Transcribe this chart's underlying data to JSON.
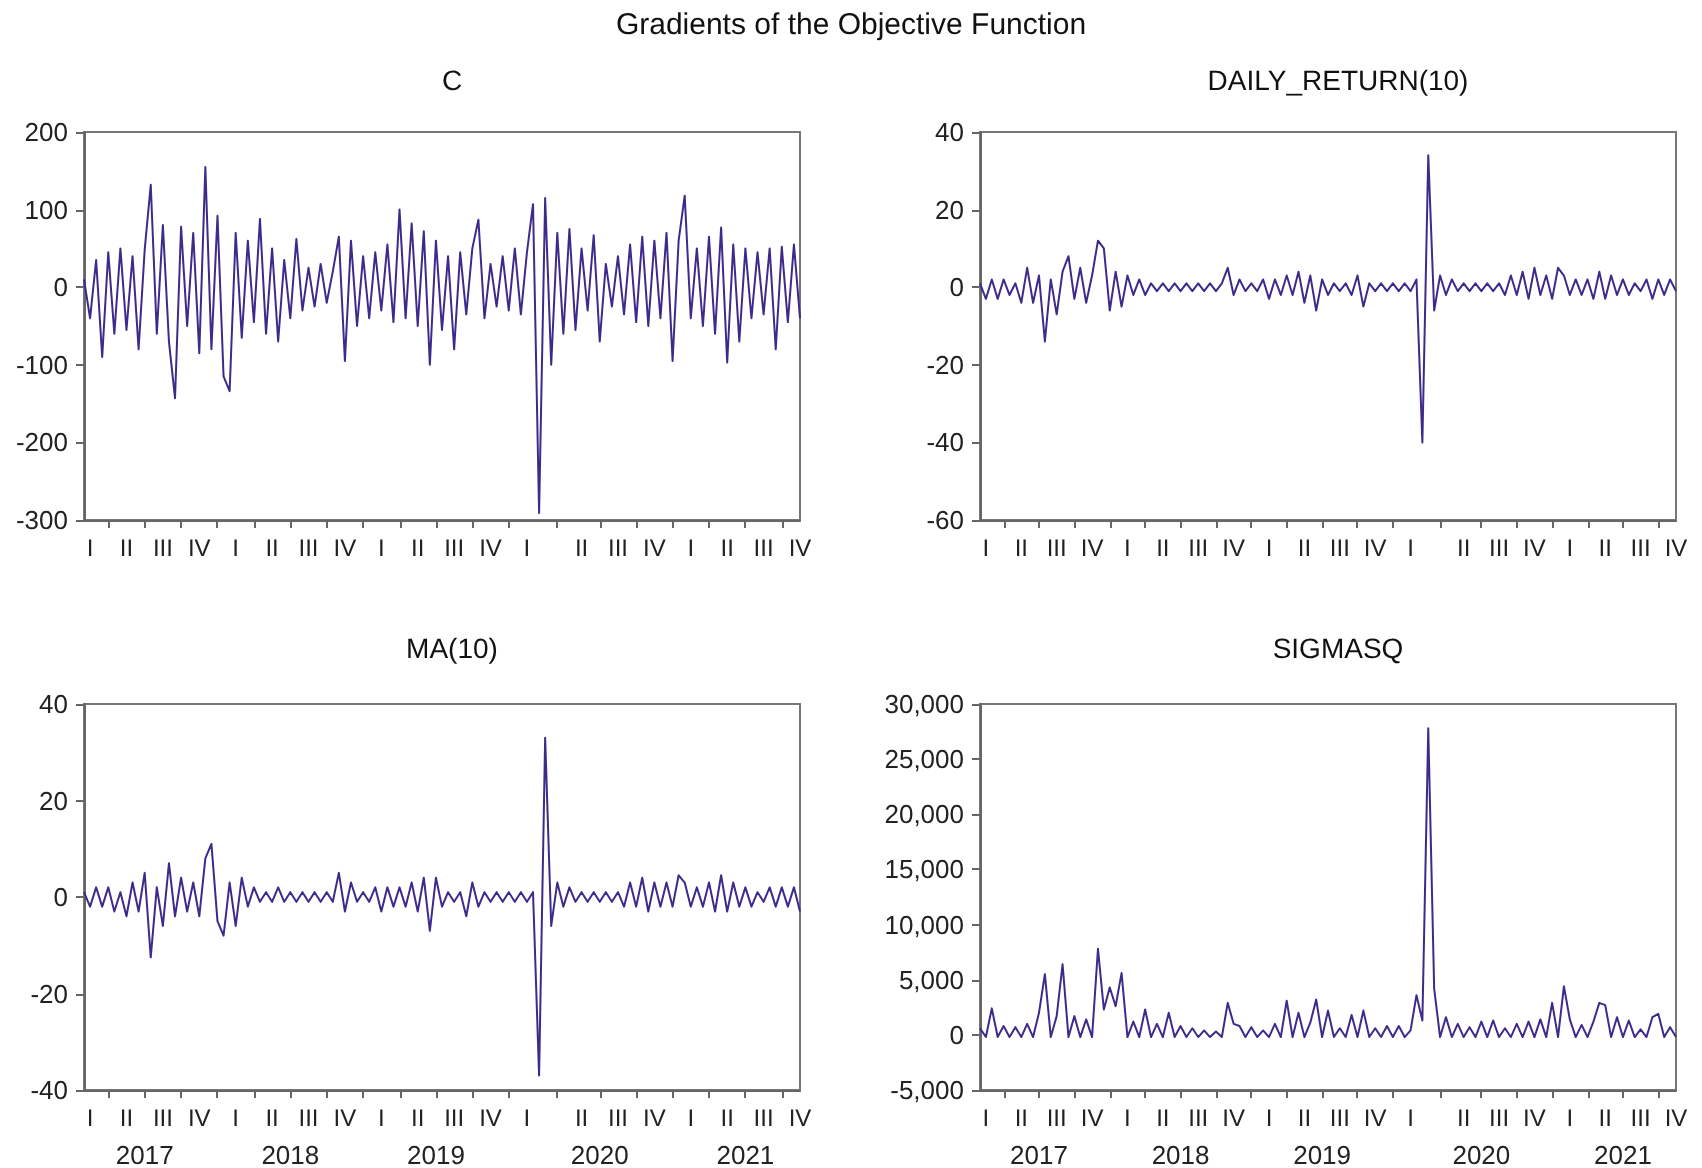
{
  "chart_data": [
    {
      "type": "line",
      "title": "C",
      "annotations": [
        "Gradients of the Objective Function"
      ],
      "color": "#3f2a8c",
      "categories": [
        null,
        "I",
        null,
        null,
        null,
        null,
        null,
        "II",
        null,
        null,
        null,
        null,
        null,
        "III",
        null,
        null,
        null,
        null,
        null,
        "IV",
        null,
        null,
        null,
        null,
        null,
        "I",
        null,
        null,
        null,
        null,
        null,
        "II",
        null,
        null,
        null,
        null,
        null,
        "III",
        null,
        null,
        null,
        null,
        null,
        "IV",
        null,
        null,
        null,
        null,
        null,
        "I",
        null,
        null,
        null,
        null,
        null,
        "II",
        null,
        null,
        null,
        null,
        null,
        "III",
        null,
        null,
        null,
        null,
        null,
        "IV",
        null,
        null,
        null,
        null,
        null,
        "I",
        null,
        null,
        null,
        null,
        null,
        null,
        null,
        null,
        "II",
        null,
        null,
        null,
        null,
        null,
        "III",
        null,
        null,
        null,
        null,
        null,
        "IV",
        null,
        null,
        null,
        null,
        null,
        "I",
        null,
        null,
        null,
        null,
        null,
        "II",
        null,
        null,
        null,
        null,
        null,
        "III",
        null,
        null,
        null,
        null,
        null,
        "IV"
      ],
      "values": [
        10,
        -40,
        35,
        -90,
        45,
        -60,
        50,
        -55,
        40,
        -80,
        48,
        132,
        -60,
        80,
        -70,
        -143,
        78,
        -50,
        70,
        -85,
        155,
        -80,
        92,
        -115,
        -134,
        70,
        -65,
        60,
        -45,
        88,
        -60,
        50,
        -70,
        35,
        -40,
        62,
        -30,
        25,
        -25,
        30,
        -20,
        20,
        65,
        -95,
        60,
        -50,
        40,
        -40,
        45,
        -30,
        55,
        -45,
        100,
        -40,
        82,
        -50,
        72,
        -100,
        60,
        -55,
        40,
        -80,
        45,
        -35,
        50,
        87,
        -40,
        30,
        -25,
        40,
        -30,
        50,
        -35,
        45,
        107,
        -291,
        115,
        -100,
        70,
        -60,
        75,
        -55,
        50,
        -30,
        67,
        -70,
        30,
        -25,
        40,
        -35,
        55,
        -45,
        65,
        -50,
        60,
        -40,
        70,
        -95,
        60,
        118,
        -40,
        50,
        -50,
        65,
        -60,
        77,
        -97,
        55,
        -70,
        50,
        -40,
        45,
        -35,
        50,
        -80,
        52,
        -45,
        55,
        -40
      ],
      "ylim": [
        -300,
        200
      ],
      "yticks": [
        -300,
        -200,
        -100,
        0,
        100,
        200
      ]
    },
    {
      "type": "line",
      "title": "DAILY_RETURN(10)",
      "color": "#3f2a8c",
      "categories": [
        null,
        "I",
        null,
        null,
        null,
        null,
        null,
        "II",
        null,
        null,
        null,
        null,
        null,
        "III",
        null,
        null,
        null,
        null,
        null,
        "IV",
        null,
        null,
        null,
        null,
        null,
        "I",
        null,
        null,
        null,
        null,
        null,
        "II",
        null,
        null,
        null,
        null,
        null,
        "III",
        null,
        null,
        null,
        null,
        null,
        "IV",
        null,
        null,
        null,
        null,
        null,
        "I",
        null,
        null,
        null,
        null,
        null,
        "II",
        null,
        null,
        null,
        null,
        null,
        "III",
        null,
        null,
        null,
        null,
        null,
        "IV",
        null,
        null,
        null,
        null,
        null,
        "I",
        null,
        null,
        null,
        null,
        null,
        null,
        null,
        null,
        "II",
        null,
        null,
        null,
        null,
        null,
        "III",
        null,
        null,
        null,
        null,
        null,
        "IV",
        null,
        null,
        null,
        null,
        null,
        "I",
        null,
        null,
        null,
        null,
        null,
        "II",
        null,
        null,
        null,
        null,
        null,
        "III",
        null,
        null,
        null,
        null,
        null,
        "IV"
      ],
      "values": [
        1,
        -3,
        2,
        -3,
        2,
        -2,
        1,
        -4,
        5,
        -4,
        3,
        -14,
        2,
        -7,
        4,
        8,
        -3,
        5,
        -4,
        3,
        12,
        10,
        -6,
        4,
        -5,
        3,
        -2,
        2,
        -2,
        1,
        -1,
        1,
        -1,
        1,
        -1,
        1,
        -1,
        1,
        -1,
        1,
        -1,
        1,
        5,
        -2,
        2,
        -1,
        1,
        -1,
        2,
        -3,
        2,
        -2,
        3,
        -2,
        4,
        -4,
        3,
        -6,
        2,
        -2,
        1,
        -1,
        1,
        -2,
        3,
        -5,
        1,
        -1,
        1,
        -1,
        1,
        -1,
        1,
        -1,
        2,
        -40,
        34,
        -6,
        3,
        -2,
        2,
        -1,
        1,
        -1,
        1,
        -1,
        1,
        -1,
        1,
        -2,
        3,
        -2,
        4,
        -3,
        5,
        -2,
        3,
        -3,
        5,
        3,
        -2,
        2,
        -2,
        2,
        -3,
        4,
        -3,
        3,
        -2,
        2,
        -2,
        1,
        -1,
        2,
        -3,
        2,
        -2,
        2,
        -1
      ],
      "ylim": [
        -60,
        40
      ],
      "yticks": [
        -60,
        -40,
        -20,
        0,
        20,
        40
      ]
    },
    {
      "type": "line",
      "title": "MA(10)",
      "color": "#3f2a8c",
      "annotations": [
        "2017",
        "2018",
        "2019",
        "2020",
        "2021"
      ],
      "categories": [
        null,
        "I",
        null,
        null,
        null,
        null,
        null,
        "II",
        null,
        null,
        null,
        null,
        null,
        "III",
        null,
        null,
        null,
        null,
        null,
        "IV",
        null,
        null,
        null,
        null,
        null,
        "I",
        null,
        null,
        null,
        null,
        null,
        "II",
        null,
        null,
        null,
        null,
        null,
        "III",
        null,
        null,
        null,
        null,
        null,
        "IV",
        null,
        null,
        null,
        null,
        null,
        "I",
        null,
        null,
        null,
        null,
        null,
        "II",
        null,
        null,
        null,
        null,
        null,
        "III",
        null,
        null,
        null,
        null,
        null,
        "IV",
        null,
        null,
        null,
        null,
        null,
        "I",
        null,
        null,
        null,
        null,
        null,
        null,
        null,
        null,
        "II",
        null,
        null,
        null,
        null,
        null,
        "III",
        null,
        null,
        null,
        null,
        null,
        "IV",
        null,
        null,
        null,
        null,
        null,
        "I",
        null,
        null,
        null,
        null,
        null,
        "II",
        null,
        null,
        null,
        null,
        null,
        "III",
        null,
        null,
        null,
        null,
        null,
        "IV"
      ],
      "values": [
        1,
        -2,
        2,
        -2,
        2,
        -3,
        1,
        -4,
        3,
        -3,
        5,
        -12.5,
        2,
        -6,
        7,
        -4,
        4,
        -3,
        3,
        -4,
        8,
        11,
        -5,
        -8,
        3,
        -6,
        4,
        -2,
        2,
        -1,
        1,
        -1,
        2,
        -1,
        1,
        -1,
        1,
        -1,
        1,
        -1,
        1,
        -1,
        5,
        -3,
        3,
        -1,
        1,
        -1,
        2,
        -3,
        2,
        -2,
        2,
        -2,
        3,
        -3,
        4,
        -7,
        4,
        -2,
        1,
        -1,
        1,
        -4,
        3,
        -2,
        1,
        -1,
        1,
        -1,
        1,
        -1,
        1,
        -1,
        1,
        -37,
        33,
        -6,
        3,
        -2,
        2,
        -1,
        1,
        -1,
        1,
        -1,
        1,
        -1,
        1,
        -2,
        3,
        -2,
        4,
        -3,
        3,
        -2,
        3,
        -2,
        4.5,
        3,
        -2,
        2,
        -2,
        3,
        -3,
        4.5,
        -3,
        3,
        -2,
        2,
        -2,
        1,
        -1,
        2,
        -2,
        2,
        -2,
        2,
        -3
      ],
      "ylim": [
        -40,
        40
      ],
      "yticks": [
        -40,
        -20,
        0,
        20,
        40
      ]
    },
    {
      "type": "line",
      "title": "SIGMASQ",
      "color": "#3f2a8c",
      "annotations": [
        "2017",
        "2018",
        "2019",
        "2020",
        "2021"
      ],
      "categories": [
        null,
        "I",
        null,
        null,
        null,
        null,
        null,
        "II",
        null,
        null,
        null,
        null,
        null,
        "III",
        null,
        null,
        null,
        null,
        null,
        "IV",
        null,
        null,
        null,
        null,
        null,
        "I",
        null,
        null,
        null,
        null,
        null,
        "II",
        null,
        null,
        null,
        null,
        null,
        "III",
        null,
        null,
        null,
        null,
        null,
        "IV",
        null,
        null,
        null,
        null,
        null,
        "I",
        null,
        null,
        null,
        null,
        null,
        "II",
        null,
        null,
        null,
        null,
        null,
        "III",
        null,
        null,
        null,
        null,
        null,
        "IV",
        null,
        null,
        null,
        null,
        null,
        "I",
        null,
        null,
        null,
        null,
        null,
        null,
        null,
        null,
        "II",
        null,
        null,
        null,
        null,
        null,
        "III",
        null,
        null,
        null,
        null,
        null,
        "IV",
        null,
        null,
        null,
        null,
        null,
        "I",
        null,
        null,
        null,
        null,
        null,
        "II",
        null,
        null,
        null,
        null,
        null,
        "III",
        null,
        null,
        null,
        null,
        null,
        "IV"
      ],
      "values": [
        600,
        -200,
        2400,
        -200,
        800,
        -200,
        700,
        -200,
        1000,
        -200,
        2000,
        5500,
        -200,
        1700,
        6400,
        -200,
        1700,
        -200,
        1400,
        -200,
        7800,
        2300,
        4300,
        2600,
        5600,
        -200,
        1200,
        -200,
        2300,
        -200,
        1000,
        -200,
        2000,
        -200,
        800,
        -200,
        600,
        -200,
        400,
        -200,
        300,
        -200,
        2900,
        1000,
        800,
        -200,
        700,
        -200,
        400,
        -200,
        1000,
        -200,
        3100,
        -200,
        2000,
        -200,
        1100,
        3200,
        -200,
        2200,
        -200,
        600,
        -200,
        1800,
        -200,
        2200,
        -200,
        600,
        -200,
        800,
        -200,
        800,
        -200,
        400,
        3600,
        1300,
        27800,
        4200,
        -200,
        1600,
        -200,
        1000,
        -200,
        700,
        -200,
        1200,
        -200,
        1300,
        -200,
        600,
        -200,
        1000,
        -200,
        1200,
        -200,
        1400,
        -200,
        2900,
        -200,
        4400,
        1400,
        -200,
        900,
        -200,
        1200,
        2900,
        2700,
        -200,
        1600,
        -200,
        1300,
        -200,
        500,
        -200,
        1600,
        1900,
        -200,
        700,
        -200
      ],
      "ylim": [
        -5000,
        30000
      ],
      "yticks": [
        {
          "value": -5000,
          "label": "-5,000"
        },
        0,
        {
          "value": 5000,
          "label": "5,000"
        },
        {
          "value": 10000,
          "label": "10,000"
        },
        {
          "value": 15000,
          "label": "15,000"
        },
        {
          "value": 20000,
          "label": "20,000"
        },
        {
          "value": 25000,
          "label": "25,000"
        },
        {
          "value": 30000,
          "label": "30,000"
        }
      ]
    }
  ]
}
